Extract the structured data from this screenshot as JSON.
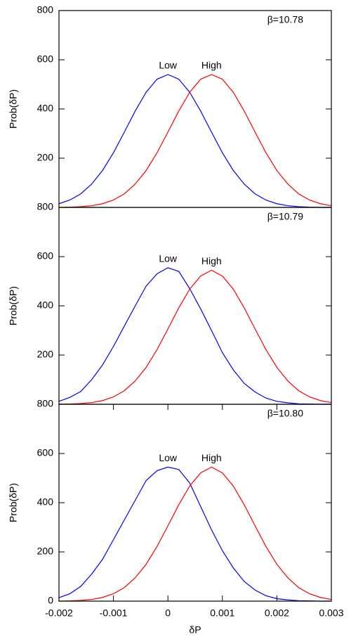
{
  "chart_data": [
    {
      "type": "line",
      "annotation": "β=10.78",
      "ylabel": "Prob(δP)",
      "x": [
        -0.002,
        -0.0018,
        -0.0016,
        -0.0014,
        -0.0012,
        -0.001,
        -0.0008,
        -0.0006,
        -0.0004,
        -0.0002,
        0,
        0.0002,
        0.0004,
        0.0006,
        0.0008,
        0.001,
        0.0012,
        0.0014,
        0.0016,
        0.0018,
        0.002,
        0.0022,
        0.0024,
        0.0026,
        0.0028,
        0.003
      ],
      "series": [
        {
          "name": "Low",
          "color": "#0000ff",
          "values": [
            15,
            30,
            55,
            95,
            150,
            222,
            306,
            392,
            468,
            521,
            540,
            521,
            468,
            392,
            306,
            222,
            150,
            95,
            55,
            30,
            15,
            7,
            3,
            1,
            0,
            0
          ]
        },
        {
          "name": "High",
          "color": "#ff0000",
          "values": [
            0,
            1,
            3,
            7,
            15,
            30,
            55,
            95,
            150,
            222,
            306,
            392,
            468,
            521,
            540,
            521,
            468,
            392,
            306,
            222,
            150,
            95,
            55,
            30,
            15,
            7
          ]
        }
      ],
      "xlim": [
        -0.002,
        0.003
      ],
      "ylim": [
        0,
        800
      ],
      "yticks": [
        200,
        400,
        600,
        800
      ]
    },
    {
      "type": "line",
      "annotation": "β=10.79",
      "ylabel": "Prob(δP)",
      "x": [
        -0.002,
        -0.0018,
        -0.0016,
        -0.0014,
        -0.0012,
        -0.001,
        -0.0008,
        -0.0006,
        -0.0004,
        -0.0002,
        0,
        0.0002,
        0.0004,
        0.0006,
        0.0008,
        0.001,
        0.0012,
        0.0014,
        0.0016,
        0.0018,
        0.002,
        0.0022,
        0.0024,
        0.0026,
        0.0028,
        0.003
      ],
      "series": [
        {
          "name": "Low",
          "color": "#0000ff",
          "values": [
            12,
            28,
            52,
            100,
            160,
            235,
            318,
            400,
            480,
            530,
            555,
            540,
            470,
            388,
            300,
            210,
            140,
            85,
            50,
            25,
            12,
            6,
            2,
            1,
            0,
            0
          ]
        },
        {
          "name": "High",
          "color": "#ff0000",
          "values": [
            0,
            1,
            3,
            7,
            15,
            30,
            55,
            95,
            150,
            222,
            306,
            392,
            468,
            521,
            545,
            521,
            468,
            392,
            306,
            222,
            150,
            95,
            55,
            30,
            15,
            7
          ]
        }
      ],
      "xlim": [
        -0.002,
        0.003
      ],
      "ylim": [
        0,
        800
      ],
      "yticks": [
        200,
        400,
        600,
        800
      ]
    },
    {
      "type": "line",
      "annotation": "β=10.80",
      "ylabel": "Prob(δP)",
      "xlabel": "δP",
      "x": [
        -0.002,
        -0.0018,
        -0.0016,
        -0.0014,
        -0.0012,
        -0.001,
        -0.0008,
        -0.0006,
        -0.0004,
        -0.0002,
        0,
        0.0002,
        0.0004,
        0.0006,
        0.0008,
        0.001,
        0.0012,
        0.0014,
        0.0016,
        0.0018,
        0.002,
        0.0022,
        0.0024,
        0.0026,
        0.0028,
        0.003
      ],
      "series": [
        {
          "name": "Low",
          "color": "#0000ff",
          "values": [
            14,
            30,
            60,
            110,
            170,
            250,
            330,
            410,
            490,
            530,
            545,
            535,
            480,
            385,
            290,
            205,
            135,
            80,
            45,
            22,
            10,
            5,
            2,
            1,
            0,
            0
          ]
        },
        {
          "name": "High",
          "color": "#ff0000",
          "values": [
            0,
            1,
            3,
            7,
            15,
            30,
            55,
            95,
            150,
            222,
            306,
            392,
            468,
            521,
            545,
            521,
            468,
            392,
            306,
            222,
            150,
            95,
            55,
            30,
            15,
            7
          ]
        }
      ],
      "xlim": [
        -0.002,
        0.003
      ],
      "ylim": [
        0,
        800
      ],
      "yticks": [
        0,
        200,
        400,
        600,
        800
      ],
      "xticks": [
        {
          "value": -0.002,
          "label": "-0.002"
        },
        {
          "value": -0.001,
          "label": "-0.001"
        },
        0,
        0.001,
        0.002,
        0.003
      ]
    }
  ]
}
